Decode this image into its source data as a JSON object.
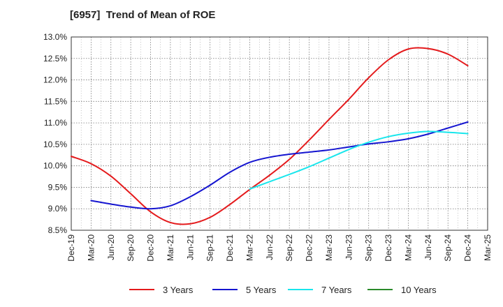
{
  "title": "[6957]  Trend of Mean of ROE",
  "chart_data": {
    "type": "line",
    "title": "[6957]  Trend of Mean of ROE",
    "xlabel": "",
    "ylabel": "",
    "categories": [
      "Dec-19",
      "Mar-20",
      "Jun-20",
      "Sep-20",
      "Dec-20",
      "Mar-21",
      "Jun-21",
      "Sep-21",
      "Dec-21",
      "Mar-22",
      "Jun-22",
      "Sep-22",
      "Dec-22",
      "Mar-23",
      "Jun-23",
      "Sep-23",
      "Dec-23",
      "Mar-24",
      "Jun-24",
      "Sep-24",
      "Dec-24",
      "Mar-25"
    ],
    "y_ticks": [
      "8.5%",
      "9.0%",
      "9.5%",
      "10.0%",
      "10.5%",
      "11.0%",
      "11.5%",
      "12.0%",
      "12.5%",
      "13.0%"
    ],
    "ylim": [
      8.5,
      13.0
    ],
    "grid": true,
    "legend_position": "bottom",
    "series": [
      {
        "name": "3 Years",
        "color": "#e41a1c",
        "values": [
          10.22,
          10.05,
          9.76,
          9.35,
          8.93,
          8.68,
          8.65,
          8.8,
          9.1,
          9.45,
          9.78,
          10.15,
          10.6,
          11.08,
          11.55,
          12.05,
          12.47,
          12.72,
          12.73,
          12.6,
          12.33,
          null
        ]
      },
      {
        "name": "5 Years",
        "color": "#1515d0",
        "values": [
          null,
          9.19,
          9.11,
          9.04,
          9.0,
          9.07,
          9.28,
          9.55,
          9.85,
          10.08,
          10.2,
          10.27,
          10.32,
          10.37,
          10.44,
          10.51,
          10.56,
          10.63,
          10.74,
          10.88,
          11.02,
          null
        ]
      },
      {
        "name": "7 Years",
        "color": "#19e6ec",
        "values": [
          null,
          null,
          null,
          null,
          null,
          null,
          null,
          null,
          null,
          9.46,
          9.63,
          9.8,
          9.98,
          10.18,
          10.38,
          10.55,
          10.68,
          10.76,
          10.8,
          10.78,
          10.75,
          null
        ]
      },
      {
        "name": "10 Years",
        "color": "#2a8a2a",
        "values": [
          null,
          null,
          null,
          null,
          null,
          null,
          null,
          null,
          null,
          null,
          null,
          null,
          null,
          null,
          null,
          null,
          null,
          null,
          null,
          null,
          null,
          null
        ]
      }
    ]
  }
}
